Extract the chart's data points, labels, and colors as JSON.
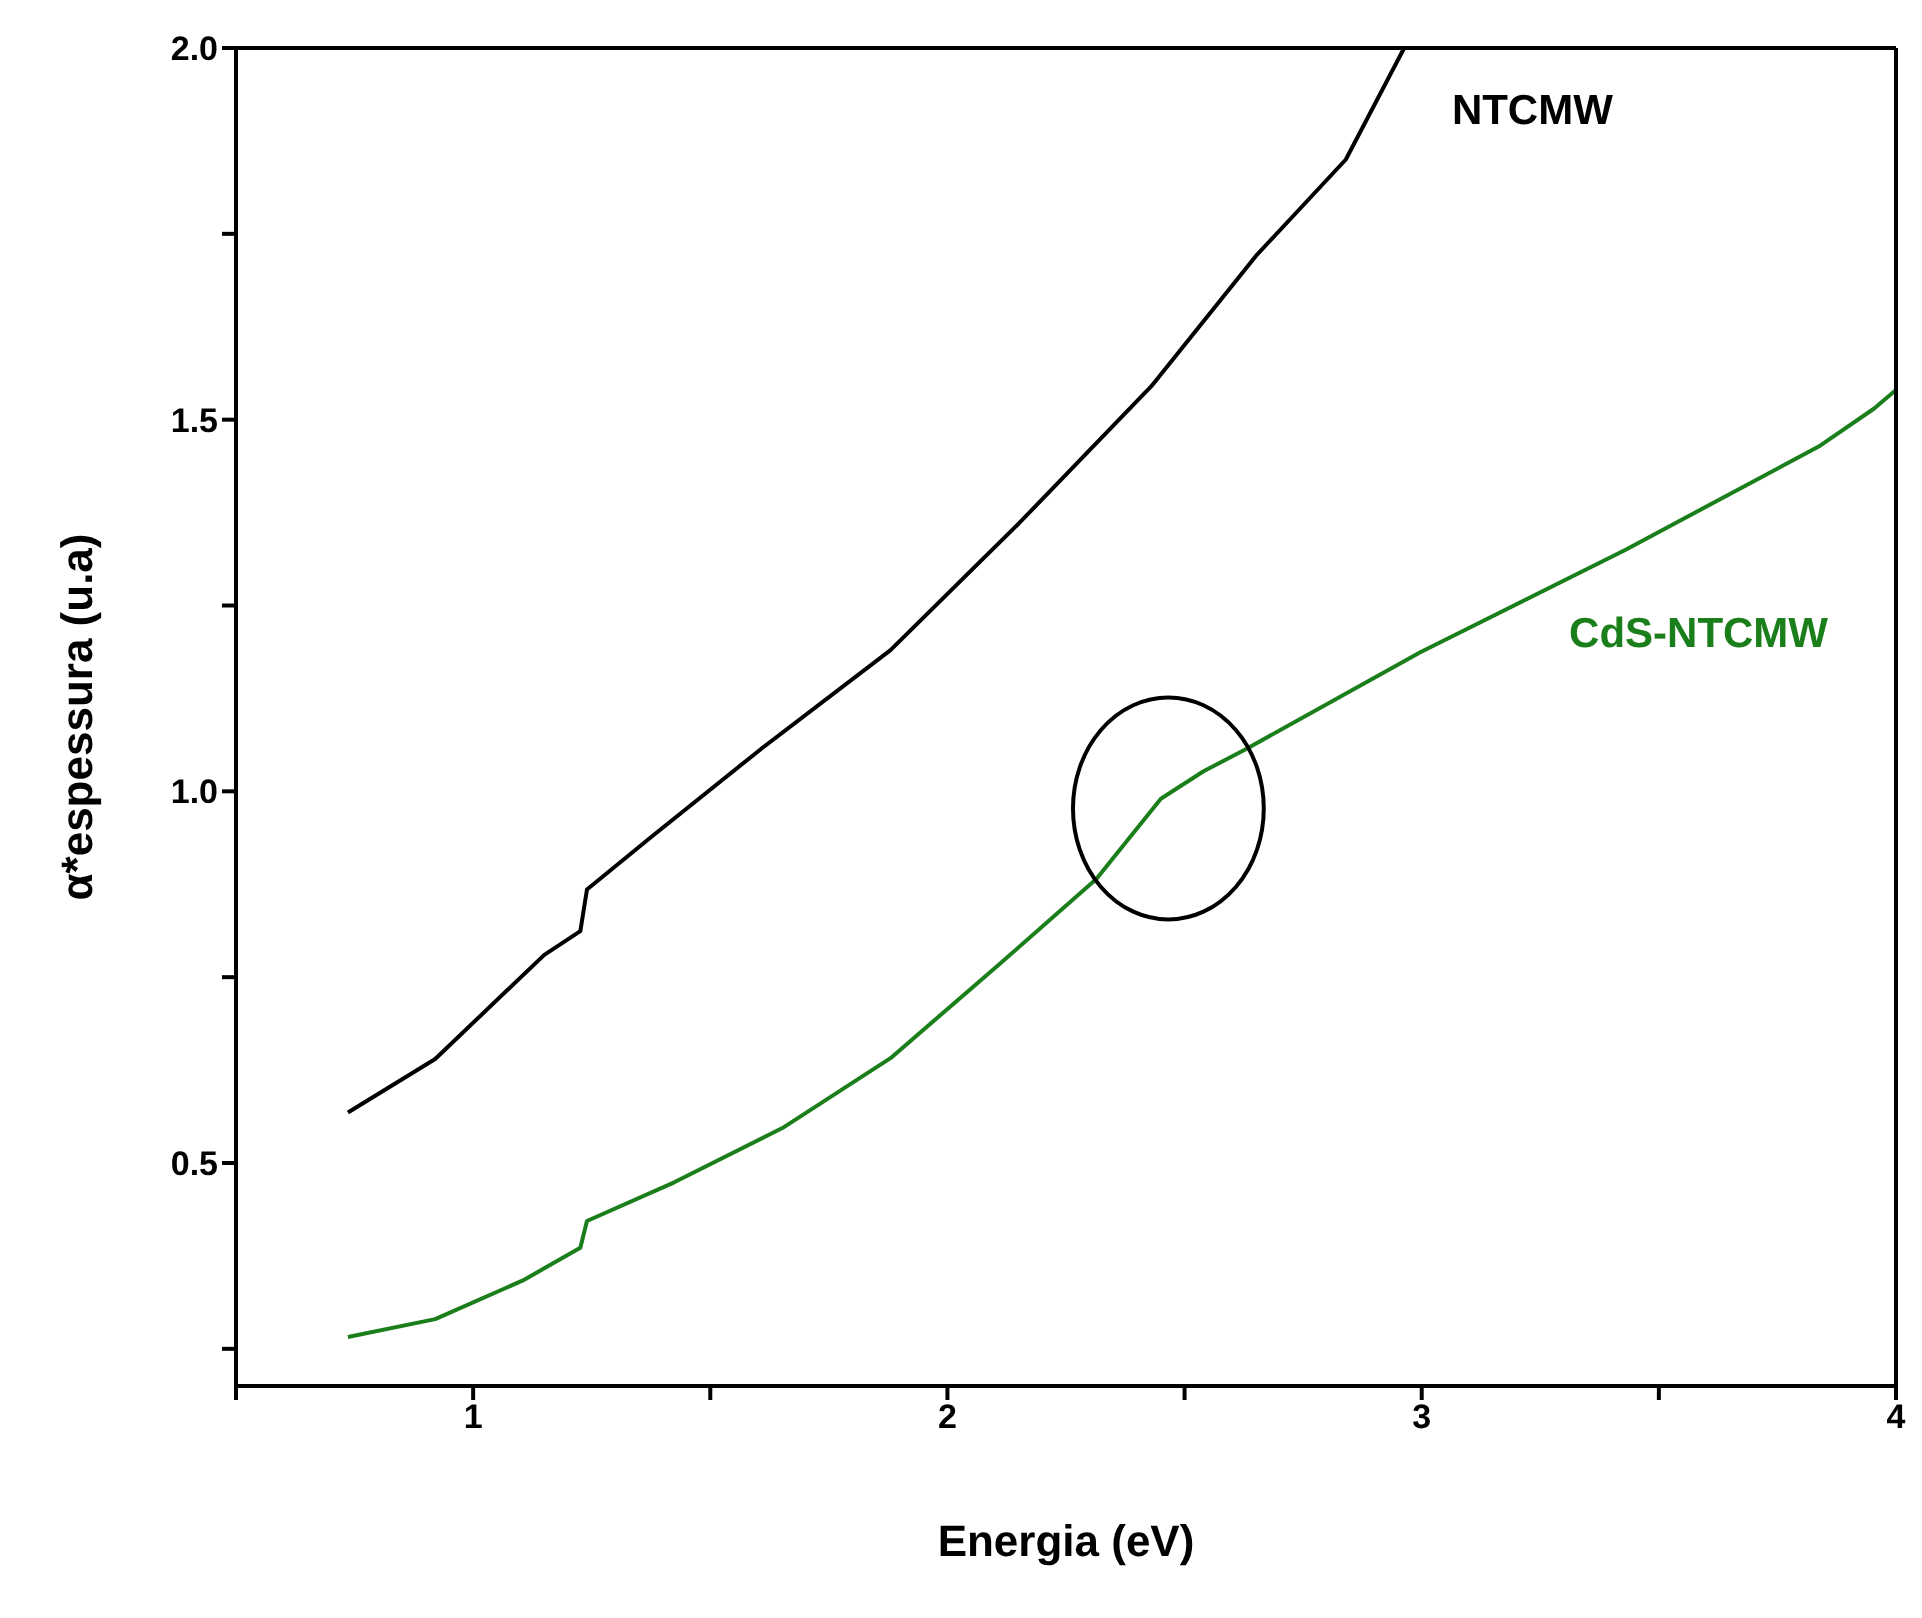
{
  "chart_data": {
    "type": "line",
    "xlabel": "Energia (eV)",
    "ylabel": "α*espessura (u.a)",
    "xlim": [
      0.5,
      4
    ],
    "ylim": [
      0.2,
      2.0
    ],
    "xticks": [
      {
        "value": 0.5,
        "label": null
      },
      1,
      {
        "value": 1.5,
        "label": null
      },
      2,
      {
        "value": 2.5,
        "label": null
      },
      3,
      {
        "value": 3.5,
        "label": null
      },
      4
    ],
    "yticks": [
      {
        "value": 0.25,
        "label": null
      },
      {
        "value": 0.5,
        "label": "0.5"
      },
      {
        "value": 0.75,
        "label": null
      },
      {
        "value": 1.0,
        "label": "1.0"
      },
      {
        "value": 1.25,
        "label": null
      },
      {
        "value": 1.5,
        "label": "1.5"
      },
      {
        "value": 1.75,
        "label": null
      },
      {
        "value": 2.0,
        "label": "2.0"
      }
    ],
    "marker": "none",
    "line_style": "solid",
    "series": [
      {
        "name": "NTCMW",
        "color": "#000000",
        "x": [
          0.736,
          0.92,
          1.15,
          1.226,
          1.24,
          1.378,
          1.607,
          1.88,
          2.15,
          2.43,
          2.65,
          2.84,
          2.963
        ],
        "values": [
          0.568,
          0.64,
          0.78,
          0.812,
          0.868,
          0.94,
          1.057,
          1.19,
          1.36,
          1.545,
          1.72,
          1.85,
          2.0
        ]
      },
      {
        "name": "CdS-NTCMW",
        "color": "#1a7f1a",
        "x": [
          0.736,
          0.92,
          1.105,
          1.226,
          1.24,
          1.424,
          1.652,
          1.88,
          2.107,
          2.314,
          2.45,
          2.54,
          2.63,
          2.997,
          3.43,
          3.84,
          3.954,
          3.998
        ],
        "values": [
          0.266,
          0.29,
          0.342,
          0.386,
          0.422,
          0.474,
          0.547,
          0.641,
          0.766,
          0.882,
          0.99,
          1.027,
          1.057,
          1.187,
          1.325,
          1.465,
          1.515,
          1.539
        ]
      }
    ]
  }
}
